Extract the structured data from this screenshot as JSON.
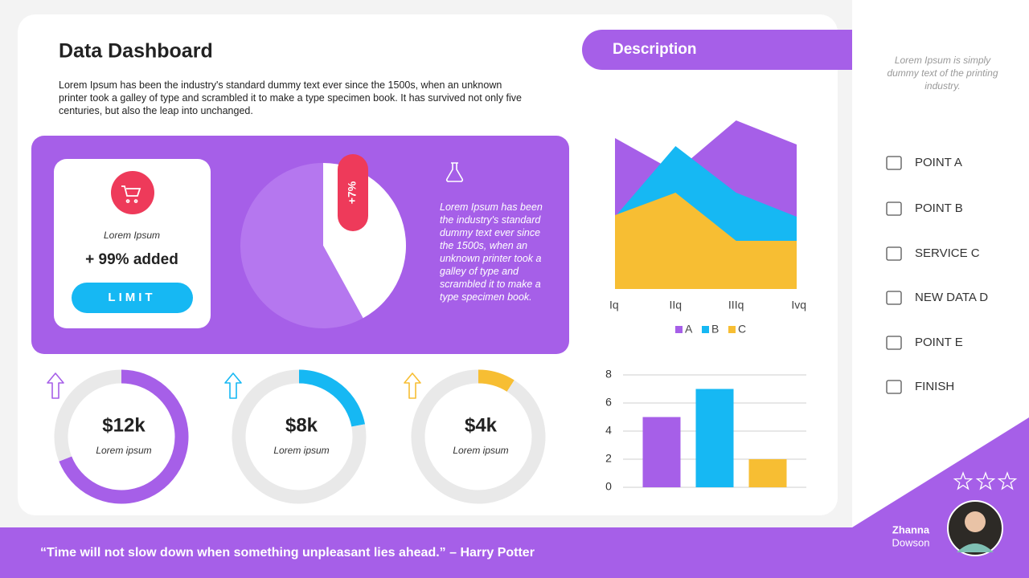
{
  "header": {
    "title": "Data Dashboard",
    "text": "Lorem Ipsum has been the industry's standard dummy text ever since the 1500s, when an unknown printer took a galley of type and scrambled it to make a type specimen book. It has survived not only five centuries, but also the leap into unchanged."
  },
  "card": {
    "label": "Lorem Ipsum",
    "value": "+ 99% added",
    "button": "LIMIT"
  },
  "panel_text": "Lorem Ipsum has been the industry's standard dummy text ever since the 1500s, when an unknown printer took a galley of type and scrambled it to make a type specimen book.",
  "description": {
    "title": "Description"
  },
  "chart_data": [
    {
      "type": "pie",
      "values": [
        42,
        58
      ],
      "colors": [
        "#ffffff",
        "#b577ef"
      ],
      "annotation": "+7%"
    },
    {
      "type": "area",
      "categories": [
        "Iq",
        "IIq",
        "IIIq",
        "Ivq"
      ],
      "ylim": [
        0,
        12
      ],
      "series": [
        {
          "name": "A",
          "color": "#a65fe8",
          "values": [
            9.4,
            7.3,
            10.5,
            9
          ]
        },
        {
          "name": "B",
          "color": "#16b8f3",
          "values": [
            4.5,
            8.9,
            6,
            4.5
          ]
        },
        {
          "name": "C",
          "color": "#f7be33",
          "values": [
            4.6,
            6,
            3,
            3
          ]
        }
      ]
    },
    {
      "type": "bar",
      "values": [
        5,
        7,
        2
      ],
      "colors": [
        "#a65fe8",
        "#16b8f3",
        "#f7be33"
      ],
      "ylim": [
        0,
        8
      ],
      "yticks": [
        0,
        2,
        4,
        6,
        8
      ],
      "grid": true
    },
    {
      "type": "donut",
      "label": "$12k",
      "caption": "Lorem ipsum",
      "values": [
        69,
        31
      ],
      "colors": [
        "#a65fe8",
        "#e9e9e9"
      ]
    },
    {
      "type": "donut",
      "label": "$8k",
      "caption": "Lorem ipsum",
      "values": [
        22,
        78
      ],
      "colors": [
        "#16b8f3",
        "#e9e9e9"
      ]
    },
    {
      "type": "donut",
      "label": "$4k",
      "caption": "Lorem ipsum",
      "values": [
        9,
        91
      ],
      "colors": [
        "#f7be33",
        "#e9e9e9"
      ]
    }
  ],
  "sidebar": {
    "note": "Lorem Ipsum is simply dummy text of the printing industry.",
    "items": [
      "POINT A",
      "POINT B",
      "SERVICE C",
      "NEW DATA D",
      "POINT E",
      "FINISH"
    ]
  },
  "profile": {
    "first_name": "Zhanna",
    "last_name": "Dowson"
  },
  "quote": "“Time will not slow down when something unpleasant lies ahead.” – Harry Potter"
}
